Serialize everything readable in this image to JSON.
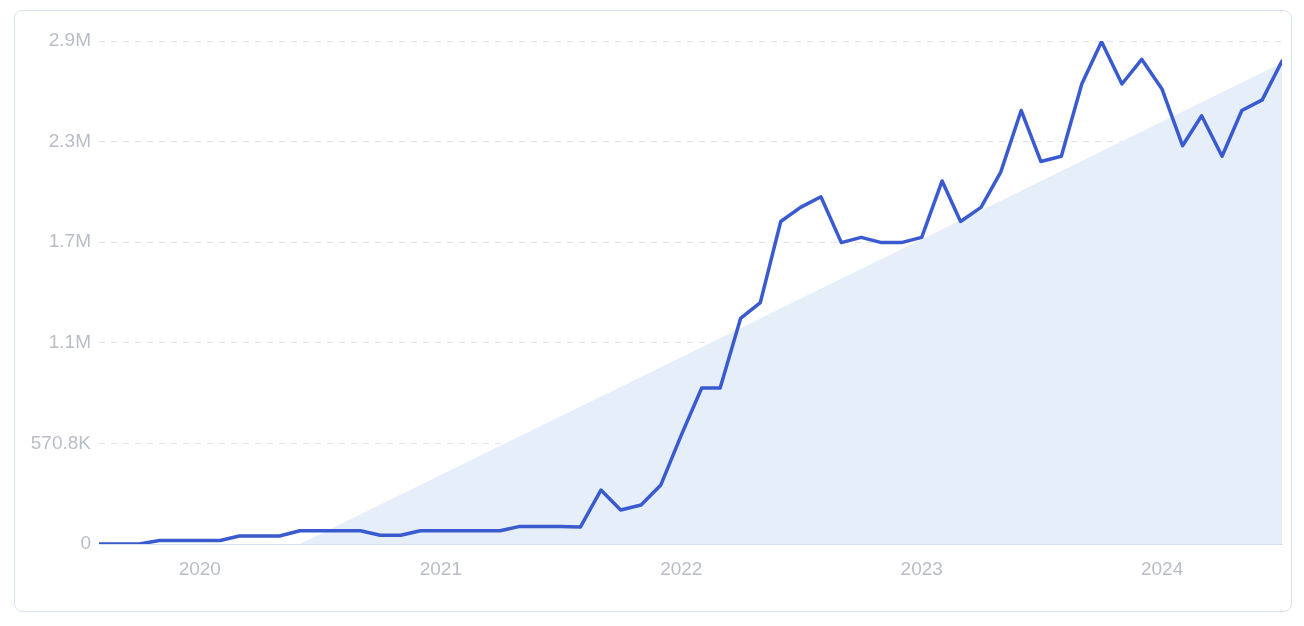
{
  "chart_data": {
    "type": "line",
    "x": [
      "2019-08",
      "2019-09",
      "2019-10",
      "2019-11",
      "2019-12",
      "2020-01",
      "2020-02",
      "2020-03",
      "2020-04",
      "2020-05",
      "2020-06",
      "2020-07",
      "2020-08",
      "2020-09",
      "2020-10",
      "2020-11",
      "2020-12",
      "2021-01",
      "2021-02",
      "2021-03",
      "2021-04",
      "2021-05",
      "2021-06",
      "2021-07",
      "2021-08",
      "2021-09",
      "2021-10",
      "2021-11",
      "2021-12",
      "2022-01",
      "2022-02",
      "2022-03",
      "2022-04",
      "2022-05",
      "2022-06",
      "2022-07",
      "2022-08",
      "2022-09",
      "2022-10",
      "2022-11",
      "2022-12",
      "2023-01",
      "2023-02",
      "2023-03",
      "2023-04",
      "2023-05",
      "2023-06",
      "2023-07",
      "2023-08",
      "2023-09",
      "2023-10",
      "2023-11",
      "2023-12",
      "2024-01",
      "2024-02",
      "2024-03",
      "2024-04",
      "2024-05",
      "2024-06",
      "2024-07"
    ],
    "series": [
      {
        "type": "area",
        "color": "#e6eefa",
        "x": [
          "2020-06",
          "2024-07"
        ],
        "values": [
          0,
          2730000
        ]
      },
      {
        "type": "line",
        "color": "#3a5bd0",
        "values": [
          0,
          0,
          0,
          20000,
          20000,
          20000,
          20000,
          45000,
          45000,
          45000,
          75000,
          75000,
          75000,
          75000,
          50000,
          50000,
          75000,
          75000,
          75000,
          75000,
          75000,
          100000,
          100000,
          100000,
          97000,
          306000,
          193000,
          221000,
          335000,
          618000,
          885000,
          885000,
          1280000,
          1370000,
          1830000,
          1910000,
          1970000,
          1710000,
          1740000,
          1710000,
          1710000,
          1740000,
          2060000,
          1830000,
          1910000,
          2110000,
          2460000,
          2170000,
          2200000,
          2610000,
          2850000,
          2610000,
          2750000,
          2580000,
          2260000,
          2430000,
          2200000,
          2460000,
          2520000,
          2740000
        ]
      }
    ],
    "xlim": [
      "2019-08",
      "2024-07"
    ],
    "xticks": [
      "2020",
      "2021",
      "2022",
      "2023",
      "2024"
    ],
    "ylim": [
      0,
      2854000
    ],
    "yticks": [
      0,
      {
        "value": 570800,
        "label": "570.8K"
      },
      {
        "value": 1141600,
        "label": "1.1M"
      },
      {
        "value": 1712400,
        "label": "1.7M"
      },
      {
        "value": 2283200,
        "label": "2.3M"
      },
      {
        "value": 2854000,
        "label": "2.9M"
      }
    ],
    "grid": "y",
    "legend": false,
    "marker": "none",
    "line_style": "solid"
  }
}
